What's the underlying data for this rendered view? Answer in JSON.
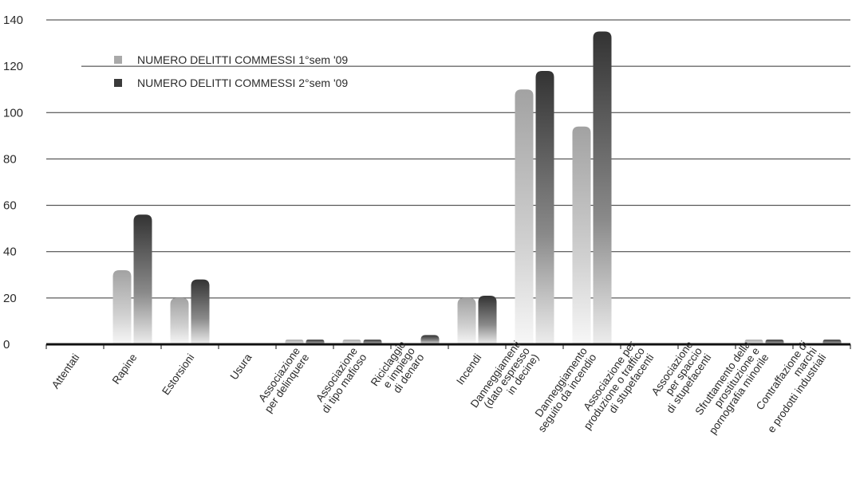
{
  "chart_data": {
    "type": "bar",
    "categories": [
      "Attentati",
      "Rapine",
      "Estorsioni",
      "Usura",
      "Associazione\nper delinquere",
      "Associazione\ndi tipo mafioso",
      "Riciclaggio\ne impiego\ndi denaro",
      "Incendi",
      "Danneggiamenti\n(dato espresso\nin decine)",
      "Danneggiamento\nseguito da incendio",
      "Associazione per\nproduzione o traffico\ndi stupefacenti",
      "Associazione\nper spaccio\ndi stupefacenti",
      "Sfruttamento della\nprostituzione e\npornografia minorile",
      "Contraffazione di\nmarchi\ne prodotti industriali"
    ],
    "series": [
      {
        "name": "NUMERO DELITTI COMMESSI 1°sem '09",
        "values": [
          0,
          32,
          20,
          0,
          2,
          2,
          0,
          20,
          110,
          94,
          0,
          0,
          2,
          0
        ]
      },
      {
        "name": "NUMERO DELITTI COMMESSI 2°sem '09",
        "values": [
          0,
          56,
          28,
          0,
          2,
          2,
          4,
          21,
          118,
          135,
          0,
          0,
          2,
          2
        ]
      }
    ],
    "yticks": [
      0,
      20,
      40,
      60,
      80,
      100,
      120,
      140
    ],
    "ylim": [
      0,
      140
    ],
    "grid": true,
    "legend_position": "top-left",
    "colors": {
      "series1": "#a9a9a9",
      "series2": "#3a3a3a",
      "axis": "#111111",
      "grid": "#333333"
    }
  }
}
